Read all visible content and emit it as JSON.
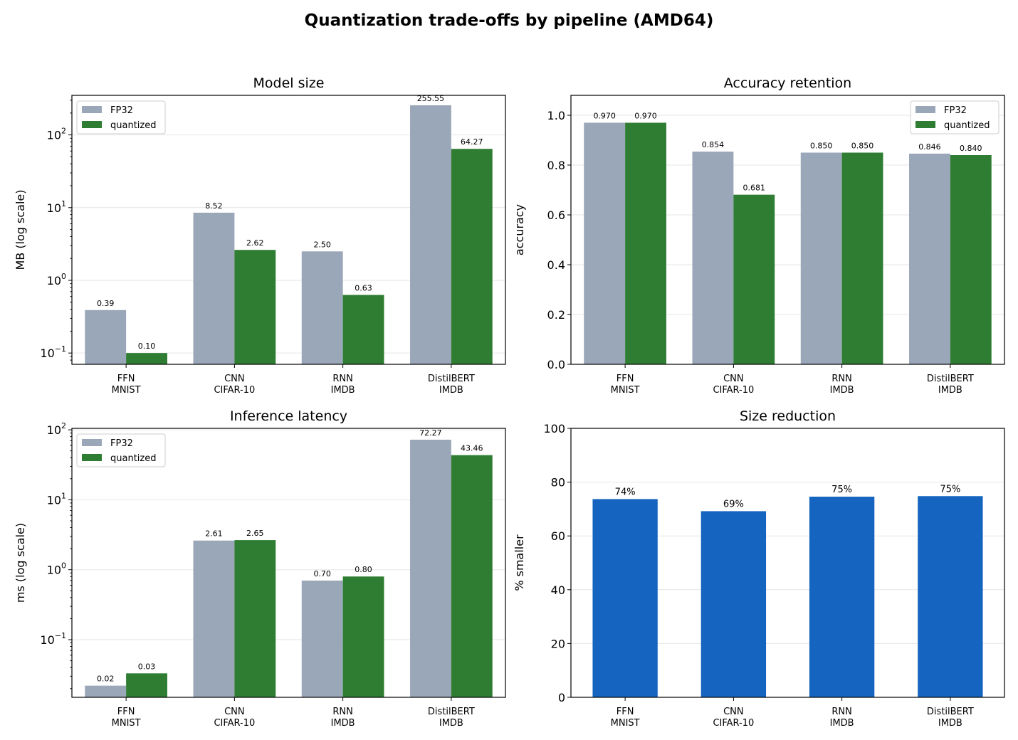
{
  "figure": {
    "title": "Quantization trade-offs by pipeline (AMD64)"
  },
  "colors": {
    "fp32": "#9aa7b8",
    "quantized": "#2e7d32",
    "reduction": "#1565c0",
    "grid": "#e6e6e6"
  },
  "chart_data": [
    {
      "type": "bar",
      "title": "Model size",
      "ylabel": "MB (log scale)",
      "yscale": "log",
      "ylim": [
        0.07,
        350
      ],
      "ticks": [
        {
          "v": 0.1,
          "b": "10",
          "e": "−1"
        },
        {
          "v": 1,
          "b": "10",
          "e": "0"
        },
        {
          "v": 10,
          "b": "10",
          "e": "1"
        },
        {
          "v": 100,
          "b": "10",
          "e": "2"
        }
      ],
      "categories": [
        [
          "FFN",
          "MNIST"
        ],
        [
          "CNN",
          "CIFAR-10"
        ],
        [
          "RNN",
          "IMDB"
        ],
        [
          "DistilBERT",
          "IMDB"
        ]
      ],
      "series": [
        {
          "name": "FP32",
          "color": "#9aa7b8",
          "values": [
            0.39,
            8.52,
            2.5,
            255.55
          ],
          "labels": [
            "0.39",
            "8.52",
            "2.50",
            "255.55"
          ]
        },
        {
          "name": "quantized",
          "color": "#2e7d32",
          "values": [
            0.1,
            2.62,
            0.63,
            64.27
          ],
          "labels": [
            "0.10",
            "2.62",
            "0.63",
            "64.27"
          ]
        }
      ],
      "legend": "top-left",
      "grid": true
    },
    {
      "type": "bar",
      "title": "Accuracy retention",
      "ylabel": "accuracy",
      "yscale": "linear",
      "ylim": [
        0,
        1.08
      ],
      "ticks": [
        {
          "v": 0,
          "t": "0.0"
        },
        {
          "v": 0.2,
          "t": "0.2"
        },
        {
          "v": 0.4,
          "t": "0.4"
        },
        {
          "v": 0.6,
          "t": "0.6"
        },
        {
          "v": 0.8,
          "t": "0.8"
        },
        {
          "v": 1.0,
          "t": "1.0"
        }
      ],
      "categories": [
        [
          "FFN",
          "MNIST"
        ],
        [
          "CNN",
          "CIFAR-10"
        ],
        [
          "RNN",
          "IMDB"
        ],
        [
          "DistilBERT",
          "IMDB"
        ]
      ],
      "series": [
        {
          "name": "FP32",
          "color": "#9aa7b8",
          "values": [
            0.97,
            0.854,
            0.85,
            0.846
          ],
          "labels": [
            "0.970",
            "0.854",
            "0.850",
            "0.846"
          ]
        },
        {
          "name": "quantized",
          "color": "#2e7d32",
          "values": [
            0.97,
            0.681,
            0.85,
            0.84
          ],
          "labels": [
            "0.970",
            "0.681",
            "0.850",
            "0.840"
          ]
        }
      ],
      "legend": "top-right",
      "grid": true
    },
    {
      "type": "bar",
      "title": "Inference latency",
      "ylabel": "ms (log scale)",
      "yscale": "log",
      "ylim": [
        0.015,
        105
      ],
      "ticks": [
        {
          "v": 0.1,
          "b": "10",
          "e": "−1"
        },
        {
          "v": 1,
          "b": "10",
          "e": "0"
        },
        {
          "v": 10,
          "b": "10",
          "e": "1"
        },
        {
          "v": 100,
          "b": "10",
          "e": "2"
        }
      ],
      "categories": [
        [
          "FFN",
          "MNIST"
        ],
        [
          "CNN",
          "CIFAR-10"
        ],
        [
          "RNN",
          "IMDB"
        ],
        [
          "DistilBERT",
          "IMDB"
        ]
      ],
      "series": [
        {
          "name": "FP32",
          "color": "#9aa7b8",
          "values": [
            0.022,
            2.61,
            0.7,
            72.27
          ],
          "labels": [
            "0.02",
            "2.61",
            "0.70",
            "72.27"
          ]
        },
        {
          "name": "quantized",
          "color": "#2e7d32",
          "values": [
            0.033,
            2.65,
            0.8,
            43.46
          ],
          "labels": [
            "0.03",
            "2.65",
            "0.80",
            "43.46"
          ]
        }
      ],
      "legend": "top-left",
      "grid": true
    },
    {
      "type": "bar",
      "title": "Size reduction",
      "ylabel": "% smaller",
      "yscale": "linear",
      "ylim": [
        0,
        100
      ],
      "ticks": [
        {
          "v": 0,
          "t": "0"
        },
        {
          "v": 20,
          "t": "20"
        },
        {
          "v": 40,
          "t": "40"
        },
        {
          "v": 60,
          "t": "60"
        },
        {
          "v": 80,
          "t": "80"
        },
        {
          "v": 100,
          "t": "100"
        }
      ],
      "categories": [
        [
          "FFN",
          "MNIST"
        ],
        [
          "CNN",
          "CIFAR-10"
        ],
        [
          "RNN",
          "IMDB"
        ],
        [
          "DistilBERT",
          "IMDB"
        ]
      ],
      "series": [
        {
          "color": "#1565c0",
          "values": [
            73.7,
            69.2,
            74.6,
            74.8
          ],
          "labels": [
            "74%",
            "69%",
            "75%",
            "75%"
          ]
        }
      ],
      "grid": true
    }
  ]
}
